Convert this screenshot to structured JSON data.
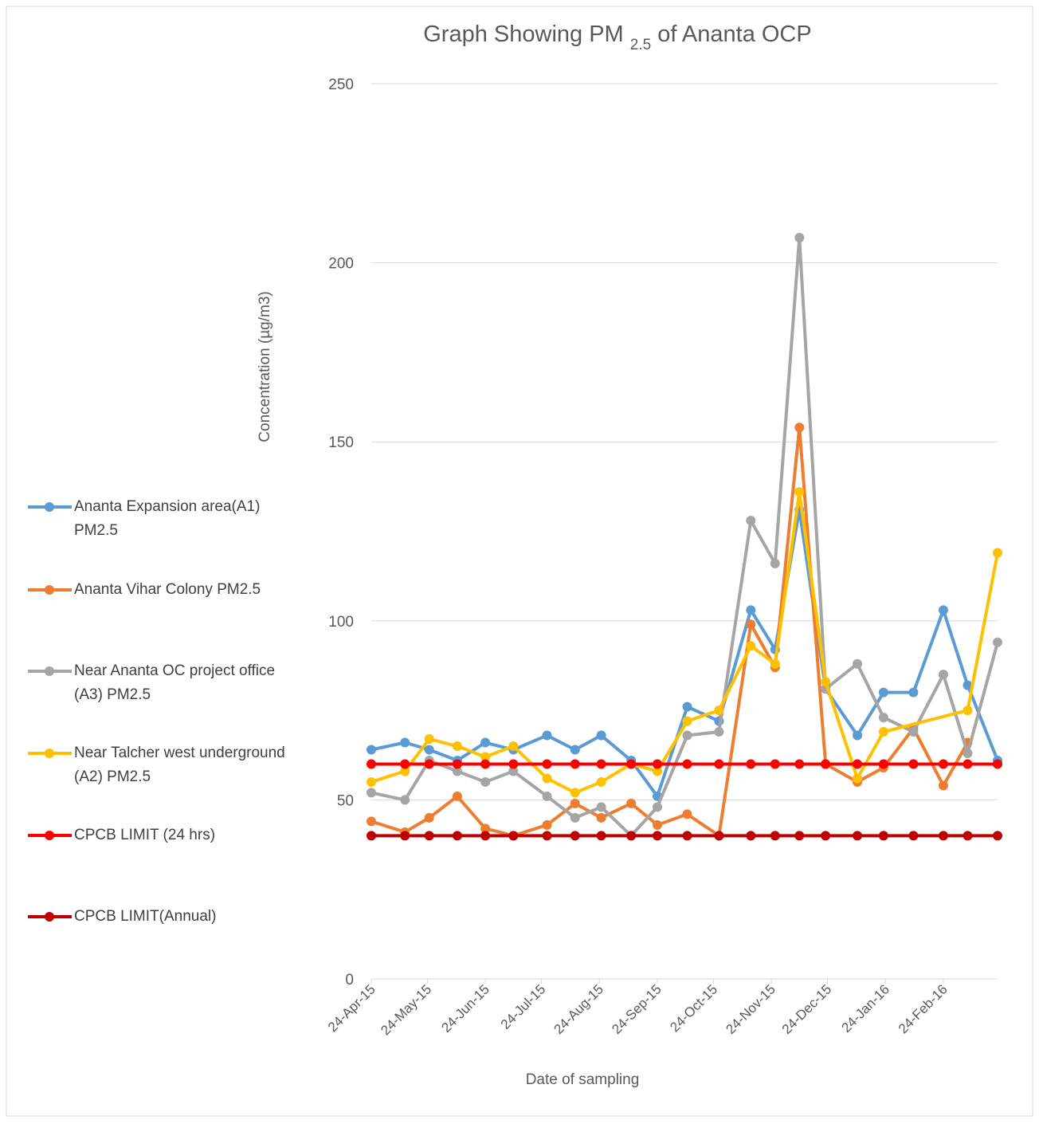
{
  "chart_data": {
    "type": "line",
    "title": {
      "text": "Graph Showing PM",
      "subscript": "2.5",
      "rest": "of Ananta OCP"
    },
    "y_label": "Concentration (µg/m3)",
    "x_label": "Date of sampling",
    "x": [
      "2015-04-24",
      "2015-05-12",
      "2015-05-25",
      "2015-06-09",
      "2015-06-24",
      "2015-07-09",
      "2015-07-27",
      "2015-08-11",
      "2015-08-25",
      "2015-09-10",
      "2015-09-24",
      "2015-10-10",
      "2015-10-27",
      "2015-11-13",
      "2015-11-26",
      "2015-12-09",
      "2015-12-23",
      "2016-01-09",
      "2016-01-23",
      "2016-02-08",
      "2016-02-24",
      "2016-03-08",
      "2016-03-24"
    ],
    "xlim": [
      "2015-04-24",
      "2016-03-24"
    ],
    "xticks": [
      {
        "value": "2015-04-24",
        "label": "24-Apr-15"
      },
      {
        "value": "2015-05-24",
        "label": "24-May-15"
      },
      {
        "value": "2015-06-24",
        "label": "24-Jun-15"
      },
      {
        "value": "2015-07-24",
        "label": "24-Jul-15"
      },
      {
        "value": "2015-08-24",
        "label": "24-Aug-15"
      },
      {
        "value": "2015-09-24",
        "label": "24-Sep-15"
      },
      {
        "value": "2015-10-24",
        "label": "24-Oct-15"
      },
      {
        "value": "2015-11-24",
        "label": "24-Nov-15"
      },
      {
        "value": "2015-12-24",
        "label": "24-Dec-15"
      },
      {
        "value": "2016-01-24",
        "label": "24-Jan-16"
      },
      {
        "value": "2016-02-24",
        "label": "24-Feb-16"
      }
    ],
    "ylim": [
      0,
      250
    ],
    "yticks": [
      0,
      50,
      100,
      150,
      200,
      250
    ],
    "grid": true,
    "legend": "left",
    "series": [
      {
        "name": "Ananta Expansion area(A1) PM2.5",
        "color": "#5b9bd5",
        "values": [
          64,
          66,
          64,
          61,
          66,
          64,
          68,
          64,
          68,
          61,
          51,
          76,
          72,
          103,
          92,
          131,
          81,
          68,
          80,
          80,
          103,
          82,
          61
        ]
      },
      {
        "name": "Ananta Vihar Colony PM2.5",
        "color": "#ed7d31",
        "values": [
          44,
          41,
          45,
          51,
          42,
          40,
          43,
          49,
          45,
          49,
          43,
          46,
          40,
          99,
          87,
          154,
          60,
          55,
          59,
          70,
          54,
          66,
          null
        ]
      },
      {
        "name": "Near Ananta OC project office (A3) PM2.5",
        "color": "#a5a5a5",
        "values": [
          52,
          50,
          61,
          58,
          55,
          58,
          51,
          45,
          48,
          40,
          48,
          68,
          69,
          128,
          116,
          207,
          81,
          88,
          73,
          69,
          85,
          63,
          94
        ]
      },
      {
        "name": "Near Talcher west underground (A2) PM2.5",
        "color": "#ffc000",
        "x": [
          "2015-04-24",
          "2015-05-12",
          "2015-05-25",
          "2015-06-09",
          "2015-06-24",
          "2015-07-09",
          "2015-07-27",
          "2015-08-11",
          "2015-08-25",
          "2015-09-10",
          "2015-09-24",
          "2015-10-10",
          "2015-10-27",
          "2015-11-13",
          "2015-11-26",
          "2015-12-09",
          "2015-12-23",
          "2016-01-09",
          "2016-01-23",
          "2016-03-08",
          "2016-03-24"
        ],
        "values": [
          55,
          58,
          67,
          65,
          62,
          65,
          56,
          52,
          55,
          60,
          58,
          72,
          75,
          93,
          88,
          136,
          83,
          56,
          69,
          75,
          119
        ]
      },
      {
        "name": "CPCB LIMIT (24 hrs)",
        "color": "#ff0000",
        "values": [
          60,
          60,
          60,
          60,
          60,
          60,
          60,
          60,
          60,
          60,
          60,
          60,
          60,
          60,
          60,
          60,
          60,
          60,
          60,
          60,
          60,
          60,
          60
        ]
      },
      {
        "name": "CPCB LIMIT(Annual)",
        "color": "#c00000",
        "values": [
          40,
          40,
          40,
          40,
          40,
          40,
          40,
          40,
          40,
          40,
          40,
          40,
          40,
          40,
          40,
          40,
          40,
          40,
          40,
          40,
          40,
          40,
          40
        ]
      }
    ]
  }
}
